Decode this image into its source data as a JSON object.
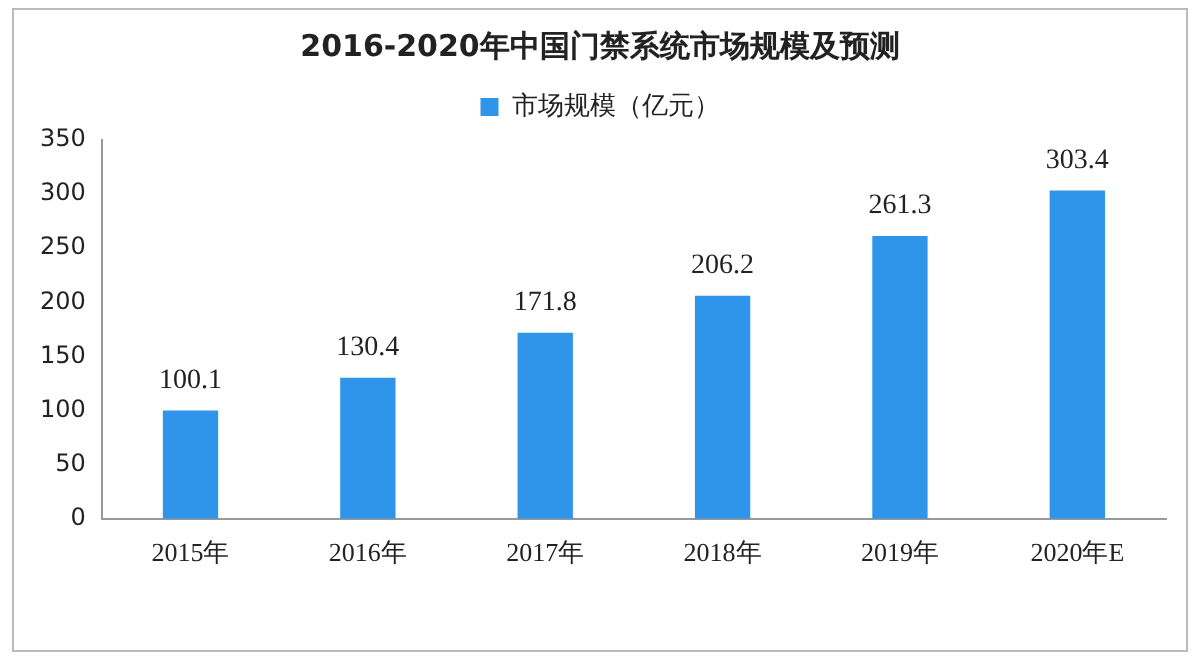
{
  "chart_data": {
    "type": "bar",
    "title": "2016-2020年中国门禁系统市场规模及预测",
    "categories": [
      "2015年",
      "2016年",
      "2017年",
      "2018年",
      "2019年",
      "2020年E"
    ],
    "series": [
      {
        "name": "市场规模（亿元）",
        "color": "#2e95ea",
        "values": [
          100.1,
          130.4,
          171.8,
          206.2,
          261.3,
          303.4
        ]
      }
    ],
    "ylim": [
      0,
      350
    ],
    "yticks": [
      0,
      50,
      100,
      150,
      200,
      250,
      300,
      350
    ],
    "grid": false,
    "legend": "top",
    "data_labels": true
  }
}
